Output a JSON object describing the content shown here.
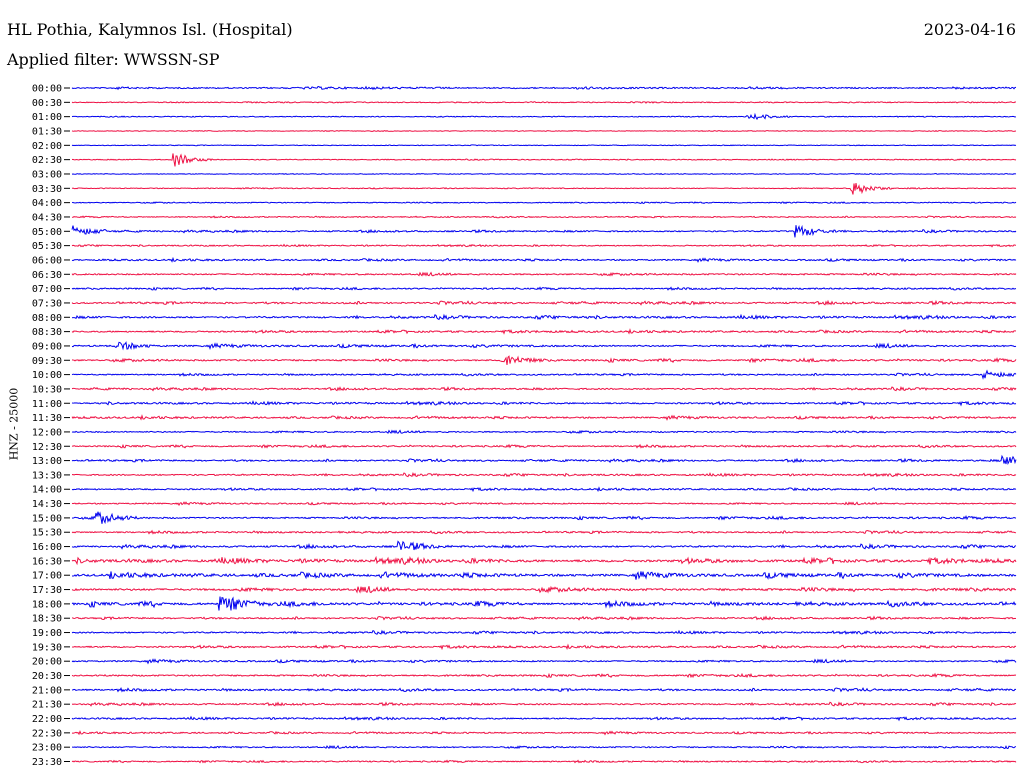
{
  "header": {
    "station": "HL Pothia, Kalymnos Isl. (Hospital)",
    "date": "2023-04-16",
    "filter": "Applied filter: WWSSN-SP"
  },
  "axis": {
    "channel_label": "HNZ - 25000"
  },
  "colors": {
    "trace_a": "#0000ee",
    "trace_b": "#ee1144"
  },
  "chart_data": {
    "type": "line",
    "title": "HL Pothia, Kalymnos Isl. (Hospital)",
    "ylabel": "HNZ - 25000",
    "row_labels": [
      "00:00",
      "00:30",
      "01:00",
      "01:30",
      "02:00",
      "02:30",
      "03:00",
      "03:30",
      "04:00",
      "04:30",
      "05:00",
      "05:30",
      "06:00",
      "06:30",
      "07:00",
      "07:30",
      "08:00",
      "08:30",
      "09:00",
      "09:30",
      "10:00",
      "10:30",
      "11:00",
      "11:30",
      "12:00",
      "12:30",
      "13:00",
      "13:30",
      "14:00",
      "14:30",
      "15:00",
      "15:30",
      "16:00",
      "16:30",
      "17:00",
      "17:30",
      "18:00",
      "18:30",
      "19:00",
      "19:30",
      "20:00",
      "20:30",
      "21:00",
      "21:30",
      "22:00",
      "22:30",
      "23:00",
      "23:30"
    ],
    "row_colors": [
      "trace_a",
      "trace_b"
    ],
    "row_activity": [
      0.45,
      0.25,
      0.18,
      0.15,
      0.12,
      0.2,
      0.14,
      0.22,
      0.28,
      0.3,
      0.45,
      0.35,
      0.5,
      0.55,
      0.45,
      0.55,
      0.6,
      0.55,
      0.65,
      0.6,
      0.45,
      0.5,
      0.55,
      0.55,
      0.5,
      0.5,
      0.5,
      0.5,
      0.5,
      0.45,
      0.55,
      0.5,
      0.6,
      0.9,
      0.95,
      0.9,
      0.85,
      0.5,
      0.5,
      0.55,
      0.55,
      0.55,
      0.55,
      0.5,
      0.5,
      0.45,
      0.45,
      0.4
    ],
    "events": [
      {
        "row": "01:00",
        "t": 0.72,
        "amp": 0.7
      },
      {
        "row": "02:30",
        "t": 0.11,
        "amp": 1.2
      },
      {
        "row": "03:30",
        "t": 0.83,
        "amp": 1.1
      },
      {
        "row": "05:00",
        "t": 0.0,
        "amp": 1.2
      },
      {
        "row": "05:00",
        "t": 0.77,
        "amp": 1.1
      },
      {
        "row": "09:00",
        "t": 0.05,
        "amp": 0.8
      },
      {
        "row": "09:30",
        "t": 0.46,
        "amp": 1.0
      },
      {
        "row": "10:00",
        "t": 0.97,
        "amp": 0.7
      },
      {
        "row": "15:00",
        "t": 0.03,
        "amp": 1.0
      },
      {
        "row": "18:00",
        "t": 0.16,
        "amp": 1.3
      },
      {
        "row": "13:00",
        "t": 0.99,
        "amp": 0.8
      },
      {
        "row": "16:00",
        "t": 0.35,
        "amp": 0.8
      }
    ],
    "grid": false,
    "legend": "none"
  }
}
